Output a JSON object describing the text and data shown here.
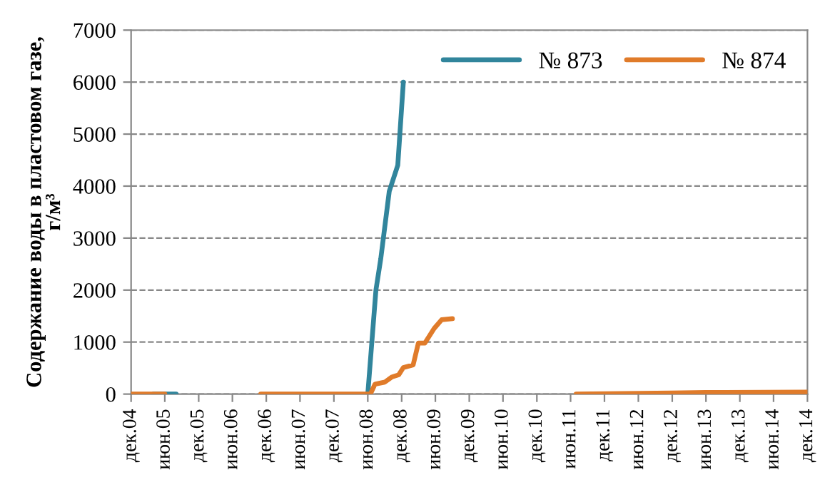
{
  "chart_data": {
    "type": "line",
    "ylabel": "Содержание воды в пластовом газе,\nг/м³",
    "xlim": [
      "2004-12",
      "2014-12"
    ],
    "xticks": [
      {
        "value": "2004-12",
        "label": "дек.04"
      },
      {
        "value": "2005-06",
        "label": "июн.05"
      },
      {
        "value": "2005-12",
        "label": "дек.05"
      },
      {
        "value": "2006-06",
        "label": "июн.06"
      },
      {
        "value": "2006-12",
        "label": "дек.06"
      },
      {
        "value": "2007-06",
        "label": "июн.07"
      },
      {
        "value": "2007-12",
        "label": "дек.07"
      },
      {
        "value": "2008-06",
        "label": "июн.08"
      },
      {
        "value": "2008-12",
        "label": "дек.08"
      },
      {
        "value": "2009-06",
        "label": "июн.09"
      },
      {
        "value": "2009-12",
        "label": "дек.09"
      },
      {
        "value": "2010-06",
        "label": "июн.10"
      },
      {
        "value": "2010-12",
        "label": "дек.10"
      },
      {
        "value": "2011-06",
        "label": "июн.11"
      },
      {
        "value": "2011-12",
        "label": "дек.11"
      },
      {
        "value": "2012-06",
        "label": "июн.12"
      },
      {
        "value": "2012-12",
        "label": "дек.12"
      },
      {
        "value": "2013-06",
        "label": "июн.13"
      },
      {
        "value": "2013-12",
        "label": "дек.13"
      },
      {
        "value": "2014-06",
        "label": "июн.14"
      },
      {
        "value": "2014-12",
        "label": "дек.14"
      }
    ],
    "ylim": [
      0,
      7000
    ],
    "yticks": [
      0,
      1000,
      2000,
      3000,
      4000,
      5000,
      6000,
      7000
    ],
    "grid": "y",
    "legend": "top right",
    "line_style": "solid",
    "marker": "none",
    "series": [
      {
        "name": "№ 873",
        "color": "#31859c",
        "x": [
          "2005-04",
          "2005-08",
          "2005-09",
          "2008-06",
          "2008-07-15",
          "2008-08-10",
          "2008-09-25",
          "2008-11-10",
          "2008-12-10"
        ],
        "values": [
          0,
          0,
          null,
          0,
          2000,
          2600,
          3900,
          4400,
          6000
        ]
      },
      {
        "name": "№ 874",
        "color": "#e07b2a",
        "x": [
          "2004-12",
          "2005-06",
          "2005-07",
          "2006-11",
          "2008-06-15",
          "2008-07-10",
          "2008-09-01",
          "2008-10-10",
          "2008-11-15",
          "2008-12-10",
          "2009-02-01",
          "2009-03-01",
          "2009-04-05",
          "2009-05-25",
          "2009-07-05",
          "2009-09-01",
          "2009-10",
          "2011-07",
          "2012-12",
          "2013-06",
          "2014-12"
        ],
        "values": [
          0,
          0,
          null,
          0,
          0,
          190,
          230,
          330,
          370,
          510,
          560,
          980,
          980,
          1260,
          1430,
          1450,
          null,
          0,
          20,
          30,
          40
        ]
      }
    ]
  }
}
